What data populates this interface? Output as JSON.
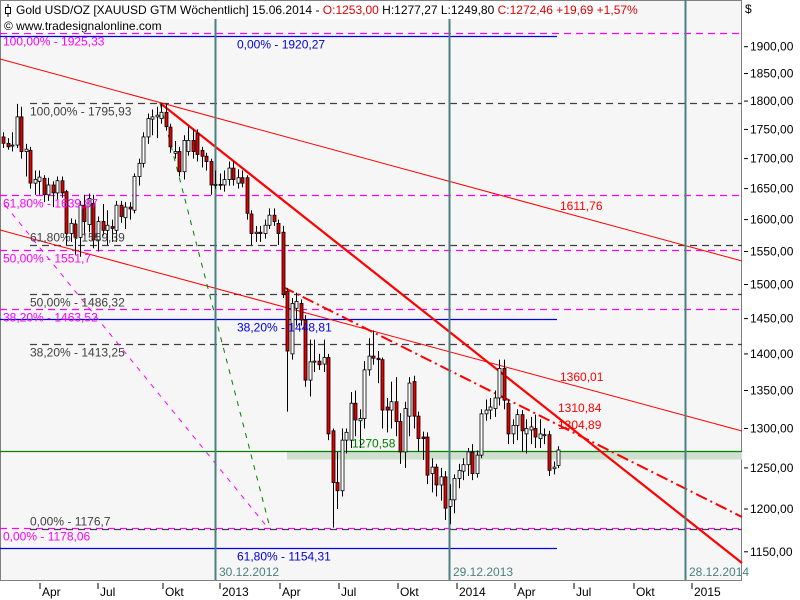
{
  "header": {
    "instrument": "Gold USD/OZ [XAUUSD GTM  Wöchentlich] 15.06.2014 - ",
    "open": "O:1253,00",
    "hl": " H:1277,27 L:1249,80 ",
    "close": "C:1272,46 +19,69 +1,57%",
    "copyright": "© www.tradesignalonline.com",
    "icon": "candlestick-icon"
  },
  "colors": {
    "up": "#ffffff",
    "down": "#e00000",
    "fib_magenta": "#ff00ff",
    "fib_gray": "#404040",
    "fib_blue": "#0000dd",
    "support": "#008000",
    "trend": "#ff0000",
    "cycle": "#4a8080",
    "background": "#f6f6f6"
  },
  "chart_data": {
    "type": "candlestick",
    "title": "Gold USD/OZ [XAUUSD GTM  Wöchentlich]",
    "last_date": "15.06.2014",
    "yscale": "log",
    "ylabel": "$",
    "yticks": [
      "1900,00",
      "1850,00",
      "1800,00",
      "1750,00",
      "1700,00",
      "1650,00",
      "1600,00",
      "1550,00",
      "1500,00",
      "1450,00",
      "1400,00",
      "1350,00",
      "1300,00",
      "1250,00",
      "1200,00",
      "1150,00"
    ],
    "ytick_values": [
      1900,
      1850,
      1800,
      1750,
      1700,
      1650,
      1600,
      1550,
      1500,
      1450,
      1400,
      1350,
      1300,
      1250,
      1200,
      1150
    ],
    "xticks": [
      "Apr",
      "Jul",
      "Okt",
      "2013",
      "Apr",
      "Jul",
      "Okt",
      "2014",
      "Apr",
      "Jul",
      "Okt",
      "2015"
    ],
    "grid": false,
    "candles_ohlc": [
      [
        1737,
        1745,
        1718,
        1726
      ],
      [
        1726,
        1735,
        1715,
        1720
      ],
      [
        1722,
        1745,
        1712,
        1723
      ],
      [
        1723,
        1795,
        1718,
        1772
      ],
      [
        1772,
        1790,
        1700,
        1712
      ],
      [
        1712,
        1725,
        1670,
        1716
      ],
      [
        1714,
        1720,
        1650,
        1659
      ],
      [
        1659,
        1680,
        1640,
        1665
      ],
      [
        1662,
        1680,
        1640,
        1669
      ],
      [
        1667,
        1672,
        1628,
        1640
      ],
      [
        1640,
        1668,
        1630,
        1656
      ],
      [
        1656,
        1662,
        1620,
        1643
      ],
      [
        1643,
        1670,
        1632,
        1663
      ],
      [
        1663,
        1670,
        1635,
        1643
      ],
      [
        1645,
        1648,
        1560,
        1578
      ],
      [
        1578,
        1602,
        1565,
        1594
      ],
      [
        1593,
        1600,
        1545,
        1572
      ],
      [
        1572,
        1630,
        1542,
        1623
      ],
      [
        1623,
        1640,
        1575,
        1597
      ],
      [
        1592,
        1642,
        1580,
        1634
      ],
      [
        1626,
        1640,
        1555,
        1568
      ],
      [
        1568,
        1605,
        1550,
        1597
      ],
      [
        1597,
        1625,
        1575,
        1583
      ],
      [
        1583,
        1615,
        1560,
        1591
      ],
      [
        1589,
        1600,
        1565,
        1586
      ],
      [
        1583,
        1630,
        1565,
        1623
      ],
      [
        1623,
        1630,
        1595,
        1605
      ],
      [
        1603,
        1628,
        1585,
        1620
      ],
      [
        1620,
        1628,
        1600,
        1617
      ],
      [
        1615,
        1675,
        1610,
        1670
      ],
      [
        1670,
        1700,
        1655,
        1692
      ],
      [
        1692,
        1745,
        1685,
        1737
      ],
      [
        1737,
        1778,
        1725,
        1769
      ],
      [
        1768,
        1785,
        1740,
        1772
      ],
      [
        1772,
        1790,
        1735,
        1775
      ],
      [
        1769,
        1796,
        1760,
        1780
      ],
      [
        1780,
        1795,
        1748,
        1755
      ],
      [
        1754,
        1760,
        1710,
        1720
      ],
      [
        1709,
        1730,
        1700,
        1712
      ],
      [
        1712,
        1720,
        1670,
        1678
      ],
      [
        1678,
        1740,
        1665,
        1731
      ],
      [
        1712,
        1755,
        1705,
        1731
      ],
      [
        1731,
        1750,
        1700,
        1712
      ],
      [
        1743,
        1750,
        1695,
        1707
      ],
      [
        1714,
        1720,
        1685,
        1704
      ],
      [
        1704,
        1710,
        1680,
        1695
      ],
      [
        1695,
        1700,
        1640,
        1656
      ],
      [
        1656,
        1680,
        1650,
        1657
      ],
      [
        1657,
        1675,
        1648,
        1656
      ],
      [
        1656,
        1680,
        1645,
        1665
      ],
      [
        1665,
        1695,
        1655,
        1684
      ],
      [
        1684,
        1695,
        1655,
        1665
      ],
      [
        1659,
        1682,
        1650,
        1668
      ],
      [
        1668,
        1680,
        1652,
        1659
      ],
      [
        1668,
        1672,
        1600,
        1610
      ],
      [
        1609,
        1615,
        1560,
        1578
      ],
      [
        1578,
        1590,
        1565,
        1580
      ],
      [
        1580,
        1590,
        1565,
        1578
      ],
      [
        1578,
        1600,
        1570,
        1591
      ],
      [
        1591,
        1618,
        1585,
        1607
      ],
      [
        1607,
        1618,
        1590,
        1597
      ],
      [
        1594,
        1600,
        1560,
        1578
      ],
      [
        1580,
        1590,
        1480,
        1485
      ],
      [
        1490,
        1495,
        1322,
        1404
      ],
      [
        1400,
        1480,
        1392,
        1472
      ],
      [
        1465,
        1488,
        1440,
        1475
      ],
      [
        1472,
        1478,
        1440,
        1448
      ],
      [
        1448,
        1455,
        1355,
        1364
      ],
      [
        1364,
        1420,
        1342,
        1389
      ],
      [
        1389,
        1420,
        1375,
        1390
      ],
      [
        1390,
        1400,
        1378,
        1385
      ],
      [
        1386,
        1420,
        1375,
        1395
      ],
      [
        1395,
        1400,
        1285,
        1293
      ],
      [
        1297,
        1300,
        1178,
        1232
      ],
      [
        1232,
        1270,
        1200,
        1222
      ],
      [
        1222,
        1300,
        1215,
        1285
      ],
      [
        1285,
        1300,
        1268,
        1295
      ],
      [
        1285,
        1348,
        1275,
        1333
      ],
      [
        1333,
        1350,
        1290,
        1311
      ],
      [
        1310,
        1325,
        1275,
        1313
      ],
      [
        1313,
        1390,
        1300,
        1378
      ],
      [
        1378,
        1422,
        1370,
        1397
      ],
      [
        1397,
        1433,
        1385,
        1394
      ],
      [
        1394,
        1404,
        1360,
        1392
      ],
      [
        1392,
        1395,
        1300,
        1324
      ],
      [
        1328,
        1340,
        1295,
        1324
      ],
      [
        1324,
        1362,
        1300,
        1335
      ],
      [
        1335,
        1368,
        1290,
        1309
      ],
      [
        1309,
        1320,
        1255,
        1270
      ],
      [
        1270,
        1335,
        1250,
        1326
      ],
      [
        1316,
        1368,
        1290,
        1360
      ],
      [
        1362,
        1370,
        1300,
        1316
      ],
      [
        1316,
        1322,
        1270,
        1287
      ],
      [
        1289,
        1296,
        1260,
        1287
      ],
      [
        1289,
        1295,
        1230,
        1241
      ],
      [
        1243,
        1262,
        1220,
        1251
      ],
      [
        1251,
        1255,
        1215,
        1229
      ],
      [
        1229,
        1250,
        1210,
        1239
      ],
      [
        1239,
        1246,
        1187,
        1201
      ],
      [
        1203,
        1230,
        1182,
        1211
      ],
      [
        1211,
        1242,
        1195,
        1237
      ],
      [
        1237,
        1255,
        1225,
        1247
      ],
      [
        1246,
        1262,
        1235,
        1254
      ],
      [
        1254,
        1275,
        1240,
        1270
      ],
      [
        1270,
        1280,
        1235,
        1243
      ],
      [
        1243,
        1272,
        1238,
        1266
      ],
      [
        1266,
        1325,
        1262,
        1319
      ],
      [
        1319,
        1338,
        1310,
        1324
      ],
      [
        1324,
        1340,
        1312,
        1328
      ],
      [
        1326,
        1350,
        1315,
        1340
      ],
      [
        1340,
        1392,
        1330,
        1380
      ],
      [
        1380,
        1392,
        1325,
        1337
      ],
      [
        1333,
        1338,
        1280,
        1293
      ],
      [
        1293,
        1312,
        1280,
        1304
      ],
      [
        1304,
        1325,
        1285,
        1318
      ],
      [
        1318,
        1324,
        1270,
        1297
      ],
      [
        1293,
        1312,
        1268,
        1300
      ],
      [
        1298,
        1315,
        1280,
        1302
      ],
      [
        1300,
        1318,
        1275,
        1289
      ],
      [
        1287,
        1312,
        1275,
        1293
      ],
      [
        1292,
        1300,
        1280,
        1292
      ],
      [
        1292,
        1297,
        1240,
        1247
      ],
      [
        1249,
        1258,
        1242,
        1251
      ],
      [
        1253,
        1277.27,
        1249.8,
        1272.46
      ]
    ],
    "levels": [
      {
        "label": "100,00% - 1925,33",
        "value": 1925.33,
        "color": "#ff00ff",
        "style": "dashed",
        "group": "magenta"
      },
      {
        "label": "0,00% - 1920,27",
        "value": 1920.27,
        "color": "#0000dd",
        "style": "solid",
        "group": "blue"
      },
      {
        "label": "100,00% - 1795,93",
        "value": 1795.93,
        "color": "#404040",
        "style": "dashed",
        "group": "gray"
      },
      {
        "label": "61,80% - 1639,87",
        "value": 1639.87,
        "color": "#ff00ff",
        "style": "dashed",
        "group": "magenta"
      },
      {
        "label": "61,80% - 1559,39",
        "value": 1559.39,
        "color": "#404040",
        "style": "dashed",
        "group": "gray"
      },
      {
        "label": "50,00% - 1551,7",
        "value": 1551.7,
        "color": "#ff00ff",
        "style": "dashed",
        "group": "magenta"
      },
      {
        "label": "50,00% - 1486,32",
        "value": 1486.32,
        "color": "#404040",
        "style": "dashed",
        "group": "gray"
      },
      {
        "label": "38,20% - 1463,52",
        "value": 1463.52,
        "color": "#ff00ff",
        "style": "dashed",
        "group": "magenta"
      },
      {
        "label": "38,20% - 1448,81",
        "value": 1448.81,
        "color": "#0000dd",
        "style": "solid",
        "group": "blue"
      },
      {
        "label": "38,20% - 1413,25",
        "value": 1413.25,
        "color": "#404040",
        "style": "dashed",
        "group": "gray"
      },
      {
        "label": "1270,58",
        "value": 1270.58,
        "color": "#008000",
        "style": "solid",
        "group": "green"
      },
      {
        "label": "0,00% - 1178,06",
        "value": 1178.06,
        "color": "#ff00ff",
        "style": "dashed",
        "group": "magenta"
      },
      {
        "label": "0,00% - 1176,7",
        "value": 1176.7,
        "color": "#404040",
        "style": "dashed",
        "group": "gray"
      },
      {
        "label": "61,80% - 1154,31",
        "value": 1154.31,
        "color": "#0000dd",
        "style": "solid",
        "group": "blue"
      }
    ],
    "trendline_labels": [
      "1611,76",
      "1360,01",
      "1310,84",
      "1304,89"
    ],
    "cycle_lines": [
      "30.12.2012",
      "29.12.2013",
      "28.12.2014"
    ]
  }
}
